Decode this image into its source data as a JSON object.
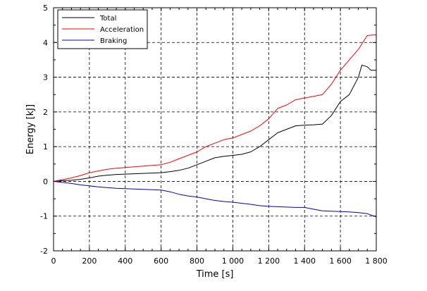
{
  "chart_data": {
    "type": "line",
    "xlabel": "Time [s]",
    "ylabel": "Energy [kJ]",
    "xlim": [
      0,
      1800
    ],
    "ylim": [
      -2,
      5
    ],
    "xticks": [
      0,
      200,
      400,
      600,
      800,
      1000,
      1200,
      1400,
      1600,
      1800
    ],
    "xtick_labels": [
      "0",
      "200",
      "400",
      "600",
      "800",
      "1 000",
      "1 200",
      "1 400",
      "1 600",
      "1 800"
    ],
    "yticks": [
      -2,
      -1,
      0,
      1,
      2,
      3,
      4,
      5
    ],
    "ytick_labels": [
      "-2",
      "-1",
      "0",
      "1",
      "2",
      "3",
      "4",
      "5"
    ],
    "grid": true,
    "grid_style": "dashed",
    "legend_position": "top-left",
    "series": [
      {
        "name": "Total",
        "color": "#000000",
        "x": [
          0,
          50,
          100,
          150,
          200,
          250,
          300,
          350,
          400,
          450,
          500,
          550,
          600,
          650,
          700,
          750,
          800,
          850,
          900,
          950,
          1000,
          1050,
          1100,
          1150,
          1200,
          1250,
          1300,
          1350,
          1400,
          1450,
          1500,
          1550,
          1600,
          1650,
          1700,
          1720,
          1750,
          1770,
          1800
        ],
        "y": [
          0,
          0.02,
          0.03,
          0.06,
          0.1,
          0.15,
          0.18,
          0.2,
          0.21,
          0.22,
          0.23,
          0.24,
          0.25,
          0.28,
          0.32,
          0.38,
          0.48,
          0.58,
          0.68,
          0.72,
          0.75,
          0.78,
          0.85,
          1.0,
          1.2,
          1.4,
          1.5,
          1.6,
          1.62,
          1.63,
          1.65,
          1.9,
          2.3,
          2.5,
          3.0,
          3.35,
          3.3,
          3.2,
          3.2
        ]
      },
      {
        "name": "Acceleration",
        "color": "#ff0000",
        "x": [
          0,
          50,
          100,
          150,
          200,
          250,
          300,
          350,
          400,
          450,
          500,
          550,
          600,
          650,
          700,
          750,
          800,
          850,
          900,
          950,
          1000,
          1050,
          1100,
          1150,
          1200,
          1250,
          1300,
          1350,
          1400,
          1450,
          1500,
          1550,
          1600,
          1650,
          1700,
          1750,
          1800
        ],
        "y": [
          0,
          0.05,
          0.1,
          0.17,
          0.25,
          0.3,
          0.35,
          0.38,
          0.4,
          0.42,
          0.44,
          0.46,
          0.48,
          0.55,
          0.65,
          0.75,
          0.85,
          1.0,
          1.1,
          1.2,
          1.25,
          1.35,
          1.45,
          1.6,
          1.8,
          2.1,
          2.2,
          2.35,
          2.4,
          2.45,
          2.5,
          2.8,
          3.2,
          3.5,
          3.8,
          4.2,
          4.22
        ]
      },
      {
        "name": "Braking",
        "color": "#0000cc",
        "x": [
          0,
          50,
          100,
          150,
          200,
          250,
          300,
          350,
          400,
          450,
          500,
          550,
          600,
          650,
          700,
          750,
          800,
          850,
          900,
          950,
          1000,
          1050,
          1100,
          1150,
          1200,
          1250,
          1300,
          1350,
          1400,
          1450,
          1500,
          1550,
          1600,
          1650,
          1700,
          1750,
          1800
        ],
        "y": [
          0,
          -0.03,
          -0.06,
          -0.1,
          -0.13,
          -0.16,
          -0.18,
          -0.2,
          -0.21,
          -0.22,
          -0.23,
          -0.24,
          -0.25,
          -0.3,
          -0.37,
          -0.42,
          -0.45,
          -0.5,
          -0.55,
          -0.58,
          -0.6,
          -0.63,
          -0.66,
          -0.7,
          -0.72,
          -0.73,
          -0.74,
          -0.75,
          -0.75,
          -0.8,
          -0.85,
          -0.86,
          -0.87,
          -0.88,
          -0.9,
          -0.93,
          -1.02
        ]
      }
    ]
  }
}
